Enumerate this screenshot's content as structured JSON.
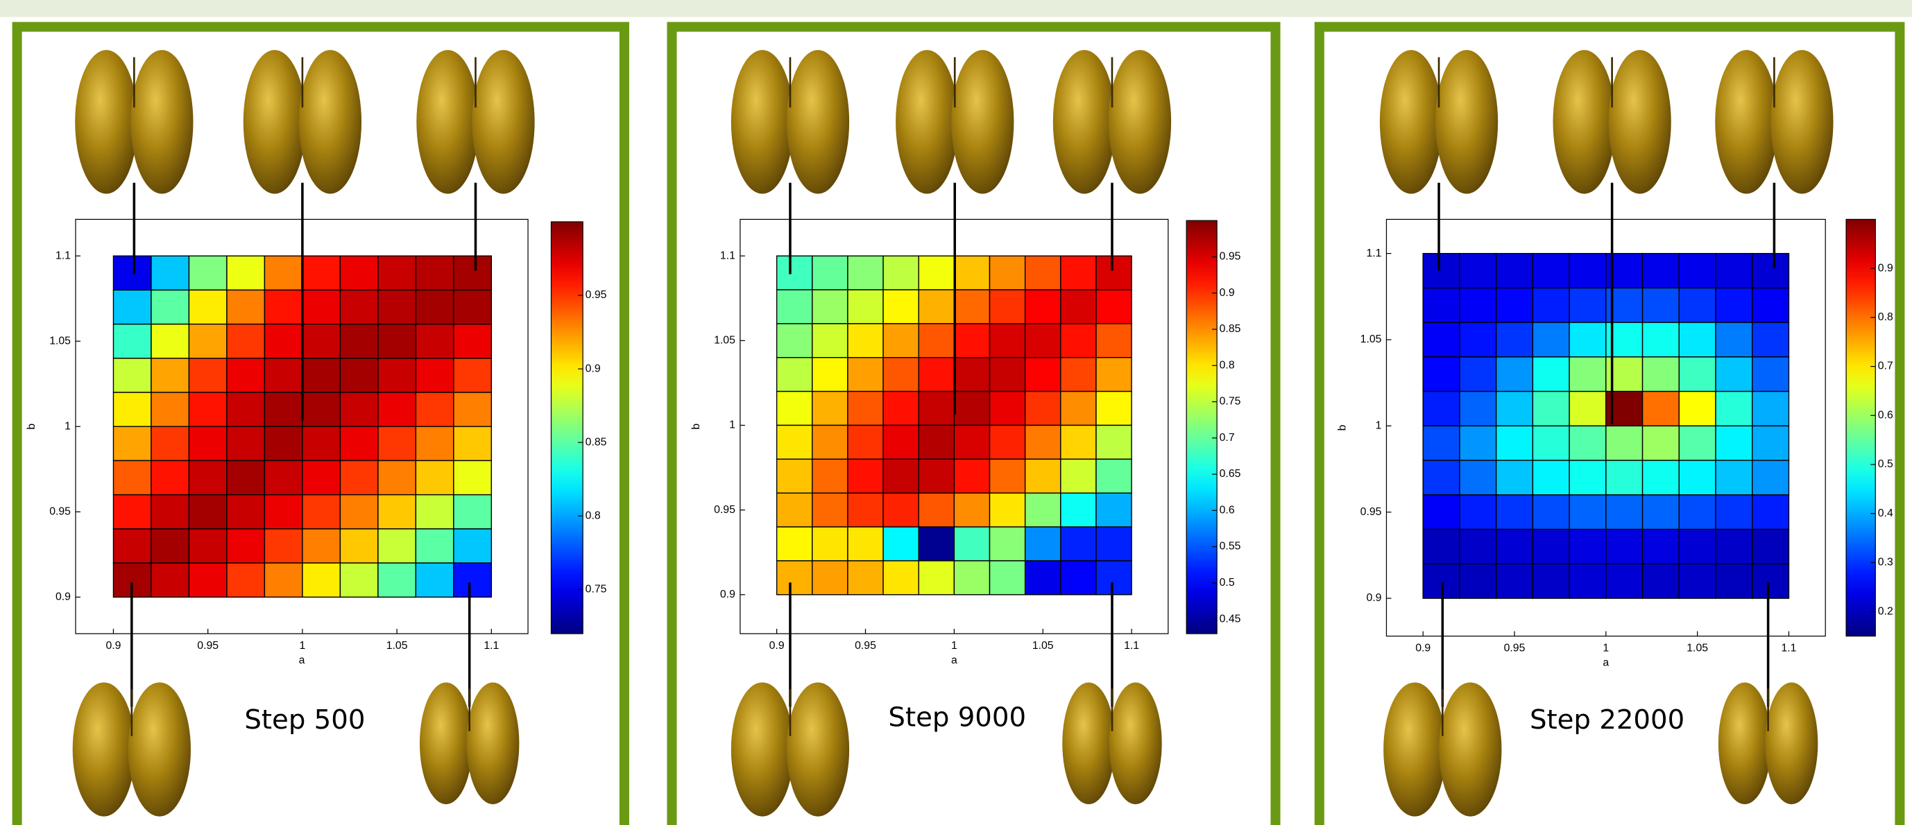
{
  "chart_data": [
    {
      "type": "heatmap",
      "xlabel": "a",
      "ylabel": "b",
      "annotation": "Step 500",
      "colormap": "jet",
      "xlim": [
        0.9,
        1.1
      ],
      "ylim": [
        0.9,
        1.1
      ],
      "xticks": [
        0.9,
        0.95,
        1,
        1.05,
        1.1
      ],
      "yticks": [
        0.9,
        0.95,
        1,
        1.05,
        1.1
      ],
      "clim": [
        0.72,
        1.0
      ],
      "cticks": [
        0.75,
        0.8,
        0.85,
        0.9,
        0.95
      ],
      "values": [
        [
          0.75,
          0.81,
          0.86,
          0.89,
          0.93,
          0.96,
          0.97,
          0.98,
          0.985,
          0.99
        ],
        [
          0.81,
          0.85,
          0.9,
          0.93,
          0.96,
          0.97,
          0.98,
          0.985,
          0.99,
          0.99
        ],
        [
          0.84,
          0.89,
          0.92,
          0.95,
          0.97,
          0.98,
          0.99,
          0.99,
          0.98,
          0.97
        ],
        [
          0.88,
          0.92,
          0.95,
          0.97,
          0.98,
          0.99,
          0.99,
          0.98,
          0.97,
          0.95
        ],
        [
          0.9,
          0.93,
          0.96,
          0.98,
          0.99,
          0.99,
          0.98,
          0.97,
          0.95,
          0.93
        ],
        [
          0.92,
          0.95,
          0.97,
          0.98,
          0.99,
          0.98,
          0.97,
          0.95,
          0.93,
          0.91
        ],
        [
          0.94,
          0.96,
          0.98,
          0.99,
          0.98,
          0.97,
          0.95,
          0.93,
          0.91,
          0.89
        ],
        [
          0.96,
          0.98,
          0.99,
          0.98,
          0.97,
          0.95,
          0.93,
          0.91,
          0.88,
          0.85
        ],
        [
          0.98,
          0.99,
          0.98,
          0.97,
          0.95,
          0.93,
          0.91,
          0.88,
          0.85,
          0.81
        ],
        [
          0.99,
          0.98,
          0.97,
          0.95,
          0.93,
          0.9,
          0.88,
          0.85,
          0.81,
          0.76
        ]
      ]
    },
    {
      "type": "heatmap",
      "xlabel": "a",
      "ylabel": "b",
      "annotation": "Step 9000",
      "colormap": "jet",
      "xlim": [
        0.9,
        1.1
      ],
      "ylim": [
        0.9,
        1.1
      ],
      "xticks": [
        0.9,
        0.95,
        1,
        1.05,
        1.1
      ],
      "yticks": [
        0.9,
        0.95,
        1,
        1.05,
        1.1
      ],
      "clim": [
        0.43,
        1.0
      ],
      "cticks": [
        0.45,
        0.5,
        0.55,
        0.6,
        0.65,
        0.7,
        0.75,
        0.8,
        0.85,
        0.9,
        0.95
      ],
      "values": [
        [
          0.68,
          0.7,
          0.72,
          0.75,
          0.78,
          0.82,
          0.85,
          0.88,
          0.92,
          0.95
        ],
        [
          0.7,
          0.73,
          0.76,
          0.79,
          0.83,
          0.87,
          0.9,
          0.93,
          0.95,
          0.93
        ],
        [
          0.72,
          0.76,
          0.8,
          0.84,
          0.88,
          0.92,
          0.95,
          0.95,
          0.92,
          0.88
        ],
        [
          0.75,
          0.79,
          0.84,
          0.88,
          0.92,
          0.96,
          0.96,
          0.93,
          0.89,
          0.84
        ],
        [
          0.78,
          0.83,
          0.88,
          0.92,
          0.96,
          0.97,
          0.94,
          0.9,
          0.85,
          0.79
        ],
        [
          0.8,
          0.85,
          0.9,
          0.94,
          0.97,
          0.95,
          0.91,
          0.86,
          0.81,
          0.75
        ],
        [
          0.82,
          0.87,
          0.92,
          0.96,
          0.96,
          0.92,
          0.87,
          0.82,
          0.76,
          0.7
        ],
        [
          0.83,
          0.87,
          0.9,
          0.91,
          0.88,
          0.85,
          0.8,
          0.72,
          0.65,
          0.6
        ],
        [
          0.79,
          0.8,
          0.8,
          0.64,
          0.44,
          0.68,
          0.72,
          0.58,
          0.52,
          0.52
        ],
        [
          0.83,
          0.84,
          0.83,
          0.8,
          0.77,
          0.73,
          0.71,
          0.49,
          0.5,
          0.52
        ]
      ]
    },
    {
      "type": "heatmap",
      "xlabel": "a",
      "ylabel": "b",
      "annotation": "Step 22000",
      "colormap": "jet",
      "xlim": [
        0.9,
        1.1
      ],
      "ylim": [
        0.9,
        1.1
      ],
      "xticks": [
        0.9,
        0.95,
        1,
        1.05,
        1.1
      ],
      "yticks": [
        0.9,
        0.95,
        1,
        1.05,
        1.1
      ],
      "clim": [
        0.15,
        1.0
      ],
      "cticks": [
        0.2,
        0.3,
        0.4,
        0.5,
        0.6,
        0.7,
        0.8,
        0.9
      ],
      "values": [
        [
          0.22,
          0.23,
          0.23,
          0.24,
          0.24,
          0.24,
          0.24,
          0.24,
          0.23,
          0.22
        ],
        [
          0.24,
          0.25,
          0.26,
          0.28,
          0.3,
          0.32,
          0.32,
          0.3,
          0.27,
          0.25
        ],
        [
          0.25,
          0.27,
          0.3,
          0.36,
          0.45,
          0.48,
          0.48,
          0.45,
          0.36,
          0.3
        ],
        [
          0.26,
          0.3,
          0.38,
          0.48,
          0.58,
          0.62,
          0.58,
          0.52,
          0.42,
          0.34
        ],
        [
          0.28,
          0.34,
          0.42,
          0.52,
          0.65,
          1.0,
          0.8,
          0.68,
          0.5,
          0.4
        ],
        [
          0.32,
          0.38,
          0.46,
          0.5,
          0.54,
          0.58,
          0.6,
          0.54,
          0.46,
          0.4
        ],
        [
          0.3,
          0.35,
          0.42,
          0.46,
          0.48,
          0.5,
          0.48,
          0.46,
          0.42,
          0.38
        ],
        [
          0.25,
          0.28,
          0.3,
          0.32,
          0.34,
          0.34,
          0.34,
          0.32,
          0.3,
          0.28
        ],
        [
          0.2,
          0.21,
          0.22,
          0.22,
          0.23,
          0.23,
          0.23,
          0.22,
          0.21,
          0.2
        ],
        [
          0.2,
          0.2,
          0.21,
          0.21,
          0.22,
          0.22,
          0.21,
          0.21,
          0.2,
          0.2
        ]
      ]
    }
  ]
}
